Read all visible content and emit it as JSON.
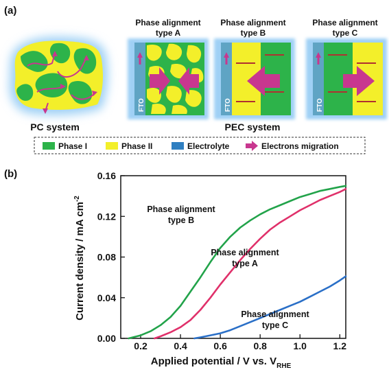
{
  "panel_a": {
    "label": "(a)",
    "pc_system_label": "PC system",
    "pec_system_label": "PEC system",
    "type_a_line1": "Phase alignment",
    "type_a_line2": "type A",
    "type_b_line1": "Phase alignment",
    "type_b_line2": "type B",
    "type_c_line1": "Phase alignment",
    "type_c_line2": "type C",
    "fto_label": "FTO",
    "legend": [
      {
        "label": "Phase I",
        "color": "#2db34a",
        "kind": "swatch"
      },
      {
        "label": "Phase II",
        "color": "#f3ef2a",
        "kind": "swatch"
      },
      {
        "label": "Electrolyte",
        "color": "#2f7fc1",
        "kind": "swatch"
      },
      {
        "label": "Electrons migration",
        "color": "#c8378f",
        "kind": "arrow"
      }
    ],
    "colors": {
      "phase1": "#2db34a",
      "phase2": "#f3ef2a",
      "electrolyte": "#2f7fc1",
      "fto": "#5fa4c4",
      "electron": "#c8378f",
      "glow": "#9fd0f5"
    }
  },
  "panel_b": {
    "label": "(b)",
    "annot_b_line1": "Phase alignment",
    "annot_b_line2": "type B",
    "annot_a_line1": "Phase alignment",
    "annot_a_line2": "type A",
    "annot_c_line1": "Phase alignment",
    "annot_c_line2": "type C"
  },
  "chart_data": {
    "type": "line",
    "xlabel_main": "Applied potential / V vs. V",
    "xlabel_sub": "RHE",
    "ylabel_main": "Current density / mA cm",
    "ylabel_sup": "-2",
    "xlim": [
      0.1,
      1.23
    ],
    "ylim": [
      0.0,
      0.16
    ],
    "xticks": [
      0.2,
      0.4,
      0.6,
      0.8,
      1.0,
      1.2
    ],
    "xtick_labels": [
      "0.2",
      "0.4",
      "0.6",
      "0.8",
      "1.0",
      "1.2"
    ],
    "yticks": [
      0.0,
      0.04,
      0.08,
      0.12,
      0.16
    ],
    "ytick_labels": [
      "0.00",
      "0.04",
      "0.08",
      "0.12",
      "0.16"
    ],
    "grid": false,
    "series": [
      {
        "color": "#22a34a",
        "x": [
          0.14,
          0.2,
          0.25,
          0.3,
          0.35,
          0.4,
          0.45,
          0.5,
          0.55,
          0.6,
          0.65,
          0.7,
          0.75,
          0.8,
          0.85,
          0.9,
          0.95,
          1.0,
          1.05,
          1.1,
          1.15,
          1.2,
          1.23
        ],
        "y": [
          0.0,
          0.003,
          0.007,
          0.013,
          0.021,
          0.032,
          0.046,
          0.06,
          0.075,
          0.089,
          0.1,
          0.109,
          0.116,
          0.122,
          0.127,
          0.131,
          0.135,
          0.139,
          0.142,
          0.145,
          0.147,
          0.149,
          0.15
        ]
      },
      {
        "color": "#e0306a",
        "x": [
          0.27,
          0.3,
          0.35,
          0.4,
          0.45,
          0.5,
          0.55,
          0.6,
          0.65,
          0.7,
          0.75,
          0.8,
          0.85,
          0.9,
          0.95,
          1.0,
          1.05,
          1.1,
          1.15,
          1.2,
          1.23
        ],
        "y": [
          0.0,
          0.002,
          0.006,
          0.011,
          0.018,
          0.028,
          0.04,
          0.053,
          0.065,
          0.077,
          0.088,
          0.098,
          0.107,
          0.114,
          0.12,
          0.126,
          0.131,
          0.136,
          0.14,
          0.144,
          0.147
        ]
      },
      {
        "color": "#2a6fc7",
        "x": [
          0.47,
          0.5,
          0.55,
          0.6,
          0.65,
          0.7,
          0.75,
          0.8,
          0.85,
          0.9,
          0.95,
          1.0,
          1.05,
          1.1,
          1.15,
          1.2,
          1.23
        ],
        "y": [
          0.0,
          0.001,
          0.003,
          0.005,
          0.008,
          0.012,
          0.016,
          0.02,
          0.024,
          0.028,
          0.032,
          0.036,
          0.041,
          0.046,
          0.051,
          0.057,
          0.061
        ]
      }
    ]
  }
}
